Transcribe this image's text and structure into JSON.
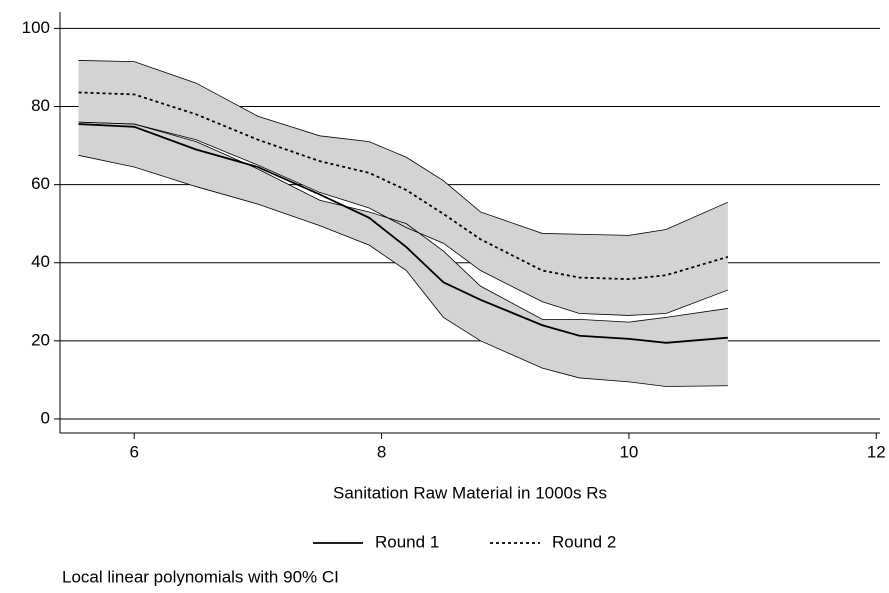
{
  "chart_data": {
    "type": "line",
    "x_label": "Sanitation Raw Material in 1000s Rs",
    "note": "Local linear polynomials with 90% CI",
    "x": [
      5.55,
      6,
      6.5,
      7,
      7.5,
      7.9,
      8.2,
      8.5,
      8.8,
      9.3,
      9.6,
      10,
      10.3,
      10.8
    ],
    "series": [
      {
        "name": "Round 1",
        "color": "#000000",
        "dash": "solid",
        "values": [
          75.5,
          74.8,
          69,
          64.5,
          57.5,
          51.5,
          44,
          35,
          30.5,
          24,
          21.3,
          20.5,
          19.5,
          20.8
        ],
        "upper": [
          76,
          75.5,
          71,
          64,
          56,
          53,
          50,
          43,
          34,
          25.5,
          25.5,
          24.8,
          26,
          28.3
        ],
        "lower": [
          67.5,
          64.5,
          59.5,
          55,
          49.5,
          44.5,
          38,
          26,
          20,
          13,
          10.5,
          9.5,
          8.3,
          8.5
        ]
      },
      {
        "name": "Round 2",
        "color": "#000000",
        "dash": "dotted",
        "values": [
          83.6,
          83.1,
          78,
          71.5,
          66,
          63,
          58.6,
          52.5,
          46,
          38,
          36.2,
          35.8,
          36.8,
          41.5
        ],
        "upper": [
          91.8,
          91.5,
          86,
          77.5,
          72.5,
          71,
          67,
          61,
          53,
          47.5,
          47.3,
          47,
          48.5,
          55.5
        ],
        "lower": [
          76,
          75.5,
          71.5,
          65,
          58,
          54,
          49,
          45,
          38,
          30,
          27,
          26.5,
          27,
          33
        ]
      }
    ],
    "band_color": "#d3d3d3",
    "xlim": [
      5.4,
      12.03
    ],
    "xticks": [
      6,
      8,
      10,
      12
    ],
    "ylim": [
      -3.6,
      104.2
    ],
    "yticks": [
      0,
      20,
      40,
      60,
      80,
      100
    ],
    "grid": true
  }
}
